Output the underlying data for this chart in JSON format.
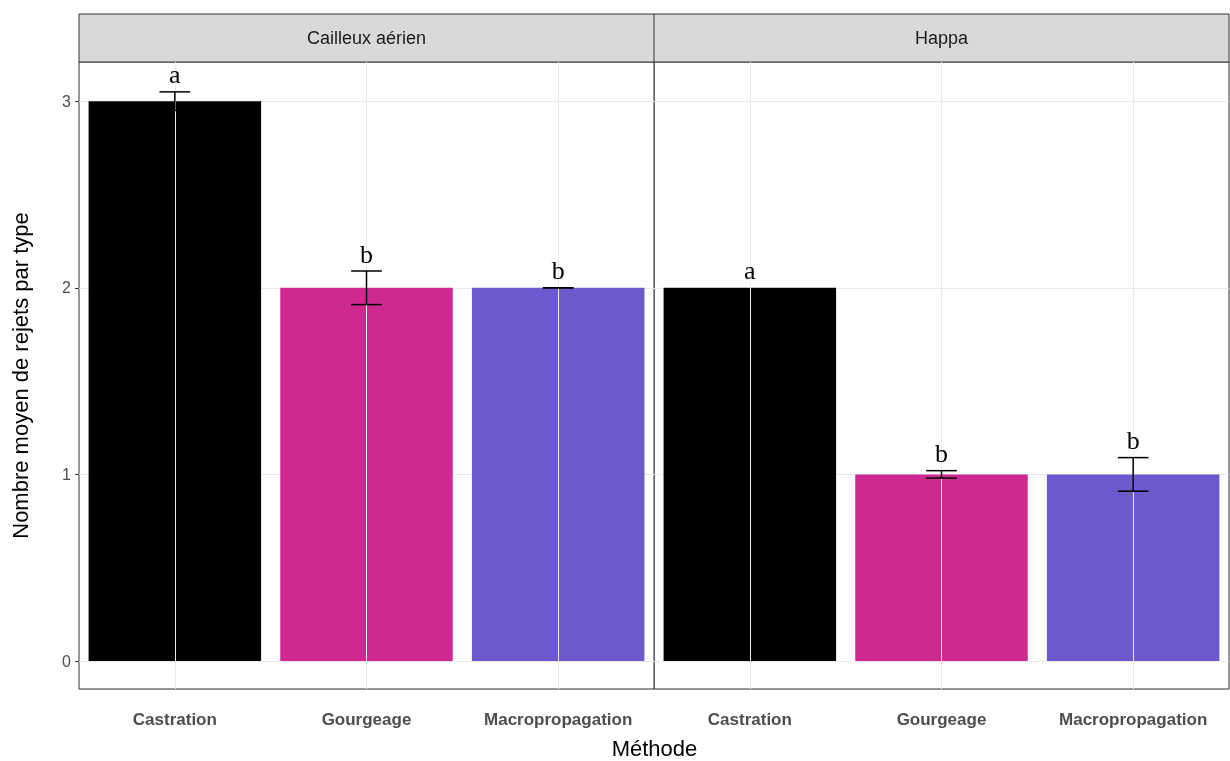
{
  "chart_data": [
    {
      "type": "bar",
      "title": "Cailleux aérien",
      "ylabel": "Nombre moyen de rejets par type",
      "xlabel": "Méthode",
      "categories": [
        "Castration",
        "Gourgeage",
        "Macropropagation"
      ],
      "values": [
        3,
        2,
        2
      ],
      "colors": [
        "#000000",
        "#cd2990",
        "#6a5acd"
      ],
      "errors": [
        0.05,
        0.09,
        0
      ],
      "value_labels": [
        "a",
        "b",
        "b"
      ],
      "ylim": [
        -0.15,
        3.21
      ],
      "yticks": [
        0,
        1,
        2,
        3
      ],
      "grid": true
    },
    {
      "type": "bar",
      "title": "Happa",
      "categories": [
        "Castration",
        "Gourgeage",
        "Macropropagation"
      ],
      "values": [
        2,
        1,
        1
      ],
      "colors": [
        "#000000",
        "#cd2990",
        "#6a5acd"
      ],
      "errors": [
        null,
        0.02,
        0.09
      ],
      "value_labels": [
        "a",
        "b",
        "b"
      ],
      "ylim": [
        -0.15,
        3.21
      ],
      "yticks": [
        0,
        1,
        2,
        3
      ],
      "grid": true,
      "tick_labels": "x"
    }
  ]
}
